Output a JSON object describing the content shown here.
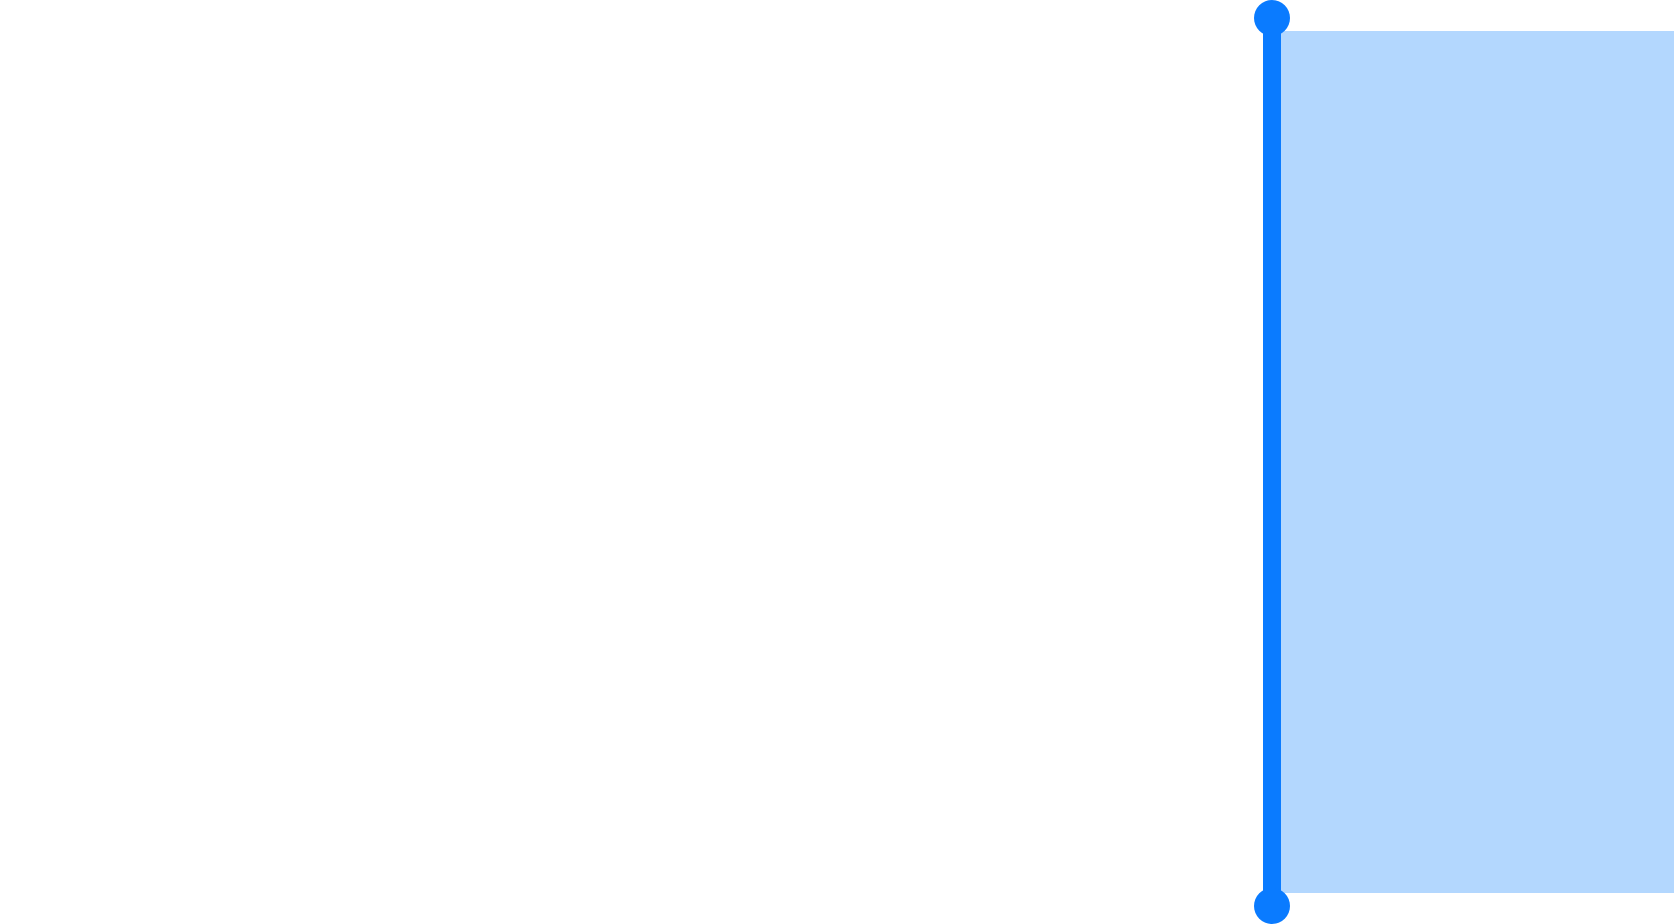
{
  "selection": {
    "fill_color": "#b3d7fe",
    "edge_color": "#0a7bff",
    "handles": [
      {
        "name": "top-selection-handle"
      },
      {
        "name": "bottom-selection-handle"
      }
    ]
  }
}
